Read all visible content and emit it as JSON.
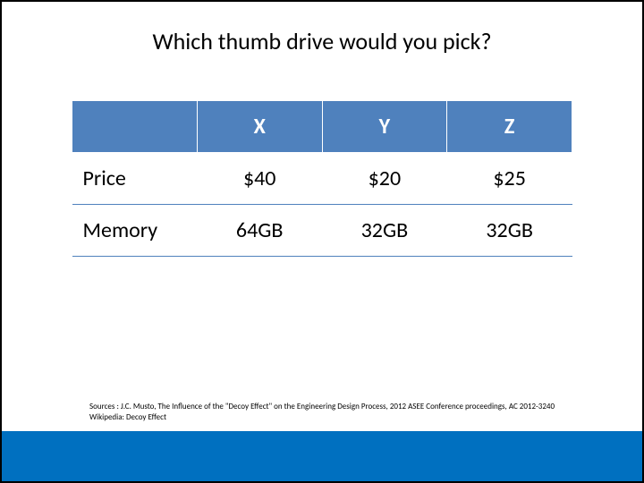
{
  "title": "Which thumb drive would you pick?",
  "table": {
    "columns": [
      "X",
      "Y",
      "Z"
    ],
    "rows": [
      {
        "label": "Price",
        "cells": [
          "$40",
          "$20",
          "$25"
        ]
      },
      {
        "label": "Memory",
        "cells": [
          "64GB",
          "32GB",
          "32GB"
        ]
      }
    ],
    "header_bg": "#4f81bd",
    "header_fg": "#ffffff",
    "cell_fg": "#000000",
    "row_border": "#4f81bd"
  },
  "sources": {
    "prefix": "Sources : ",
    "line1": "J.C. Musto, The Influence of the \"Decoy Effect\" on the Engineering Design Process, 2012 ASEE Conference proceedings, AC 2012-3240",
    "line2": "Wikipedia: Decoy Effect"
  },
  "footer_bar_color": "#0070c0"
}
